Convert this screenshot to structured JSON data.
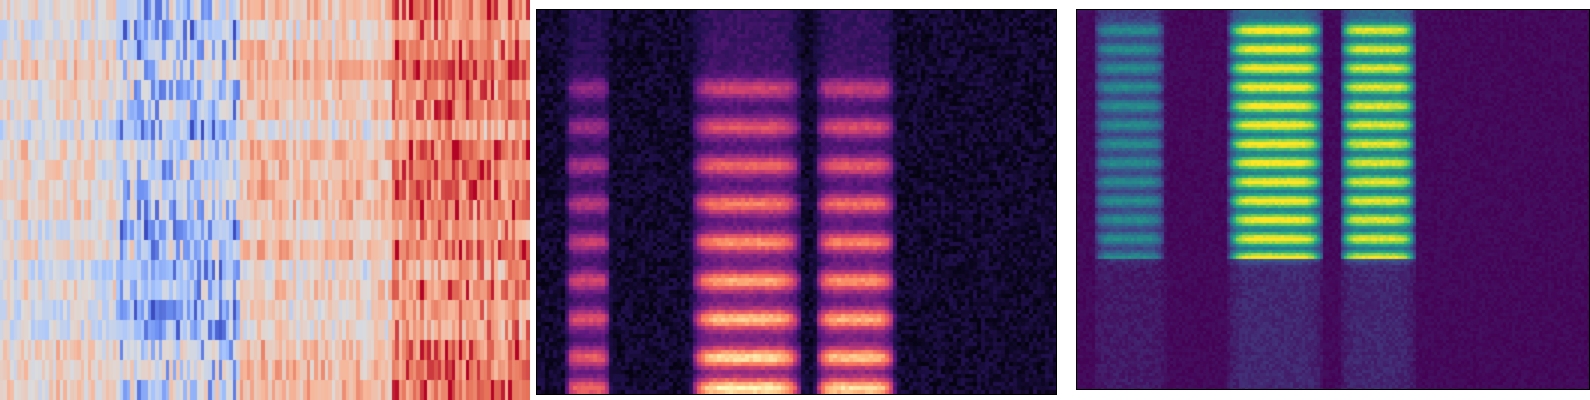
{
  "chart_data": [
    {
      "type": "heatmap",
      "colormap": "coolwarm",
      "colormap_stops": [
        "#3b4cc0",
        "#6f92f3",
        "#aac7fd",
        "#dddcdc",
        "#f7b89c",
        "#e7745b",
        "#b40426"
      ],
      "grid": false,
      "axes_visible": false,
      "shape": {
        "rows": 20,
        "cols": 150
      },
      "column_segments": [
        {
          "from": 0.0,
          "to": 0.22,
          "mean": 0.5
        },
        {
          "from": 0.22,
          "to": 0.45,
          "mean": 0.42
        },
        {
          "from": 0.45,
          "to": 0.74,
          "mean": 0.58
        },
        {
          "from": 0.74,
          "to": 1.0,
          "mean": 0.74
        }
      ]
    },
    {
      "type": "heatmap",
      "colormap": "magma",
      "colormap_stops": [
        "#000004",
        "#221150",
        "#5f187f",
        "#982d80",
        "#d3436e",
        "#f8765c",
        "#febb81",
        "#fcfdbf"
      ],
      "grid": false,
      "axes_visible": false,
      "time_segments": [
        {
          "from": 0.05,
          "to": 0.14,
          "level": 0.65
        },
        {
          "from": 0.29,
          "to": 0.51,
          "level": 0.95
        },
        {
          "from": 0.53,
          "to": 0.69,
          "level": 0.9
        }
      ],
      "harmonic_bands": [
        0.02,
        0.1,
        0.2,
        0.3,
        0.4,
        0.5,
        0.6,
        0.7,
        0.8
      ]
    },
    {
      "type": "heatmap",
      "colormap": "viridis",
      "colormap_stops": [
        "#440154",
        "#414487",
        "#2a788e",
        "#22a884",
        "#7ad151",
        "#fde725"
      ],
      "grid": false,
      "axes_visible": false,
      "time_segments": [
        {
          "from": 0.03,
          "to": 0.17,
          "level": 0.45
        },
        {
          "from": 0.29,
          "to": 0.48,
          "level": 1.0
        },
        {
          "from": 0.51,
          "to": 0.66,
          "level": 0.95
        }
      ],
      "harmonic_bands": [
        0.35,
        0.4,
        0.45,
        0.5,
        0.55,
        0.6,
        0.65,
        0.7,
        0.75,
        0.8,
        0.85,
        0.9,
        0.95
      ]
    }
  ]
}
